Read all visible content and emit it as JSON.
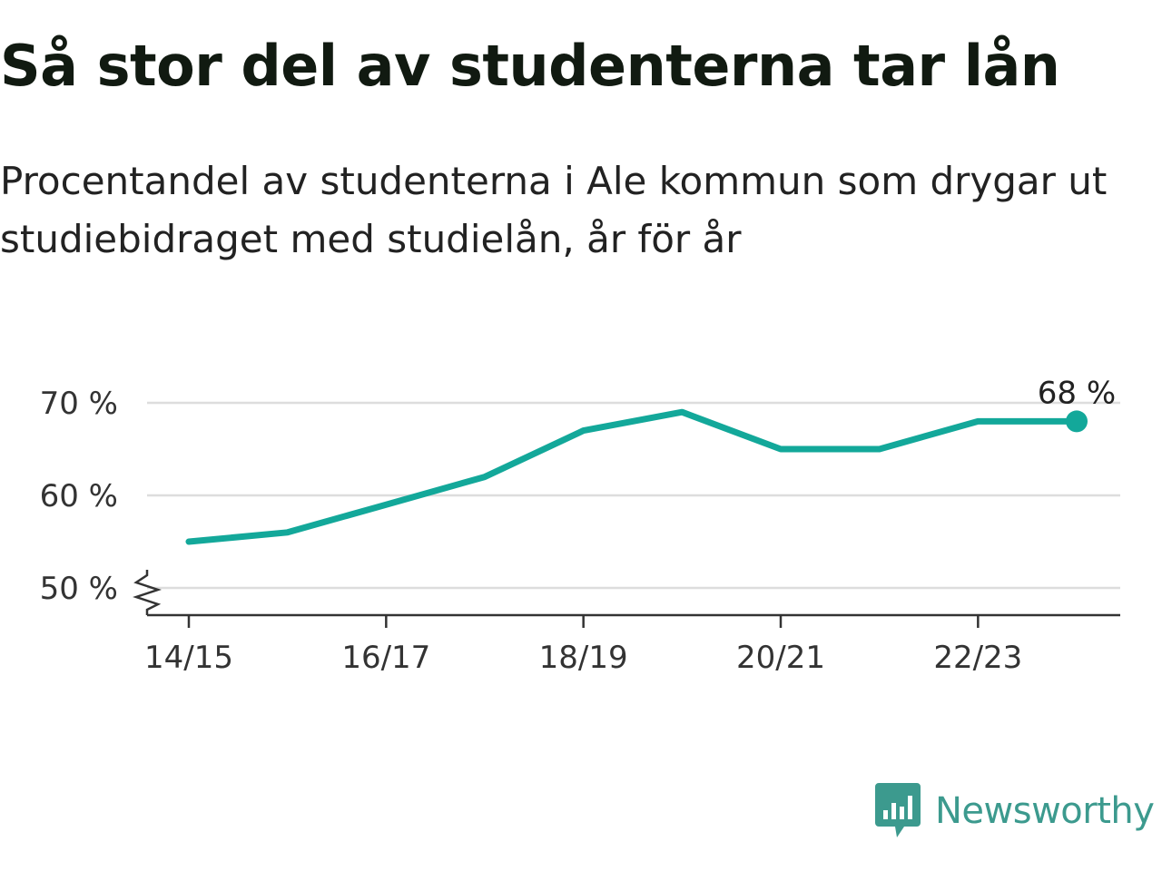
{
  "header": {
    "title": "Så stor del av studenterna tar lån",
    "subtitle": "Procentandel av studenterna i Ale kommun som drygar ut studiebidraget med studielån, år för år"
  },
  "brand": {
    "name": "Newsworthy",
    "icon": "newsworthy-logo-icon",
    "color": "#3c9a8e"
  },
  "chart_data": {
    "type": "line",
    "title": "Så stor del av studenterna tar lån",
    "subtitle": "Procentandel av studenterna i Ale kommun som drygar ut studiebidraget med studielån, år för år",
    "xlabel": "",
    "ylabel": "",
    "x": [
      "14/15",
      "15/16",
      "16/17",
      "17/18",
      "18/19",
      "19/20",
      "20/21",
      "21/22",
      "22/23",
      "23/24"
    ],
    "x_tick_labels": [
      "14/15",
      "16/17",
      "18/19",
      "20/21",
      "22/23"
    ],
    "series": [
      {
        "values": [
          55,
          56,
          59,
          62,
          67,
          69,
          65,
          65,
          68,
          68
        ],
        "color": "#13a89a"
      }
    ],
    "y_ticks": [
      50,
      60,
      70
    ],
    "y_tick_labels": [
      "50 %",
      "60 %",
      "70 %"
    ],
    "ylim": [
      47,
      72
    ],
    "y_axis_break": true,
    "grid": true,
    "legend": "none",
    "end_label": "68 %",
    "colors": {
      "line": "#13a89a",
      "grid": "#dddddd",
      "axis": "#333333"
    }
  }
}
